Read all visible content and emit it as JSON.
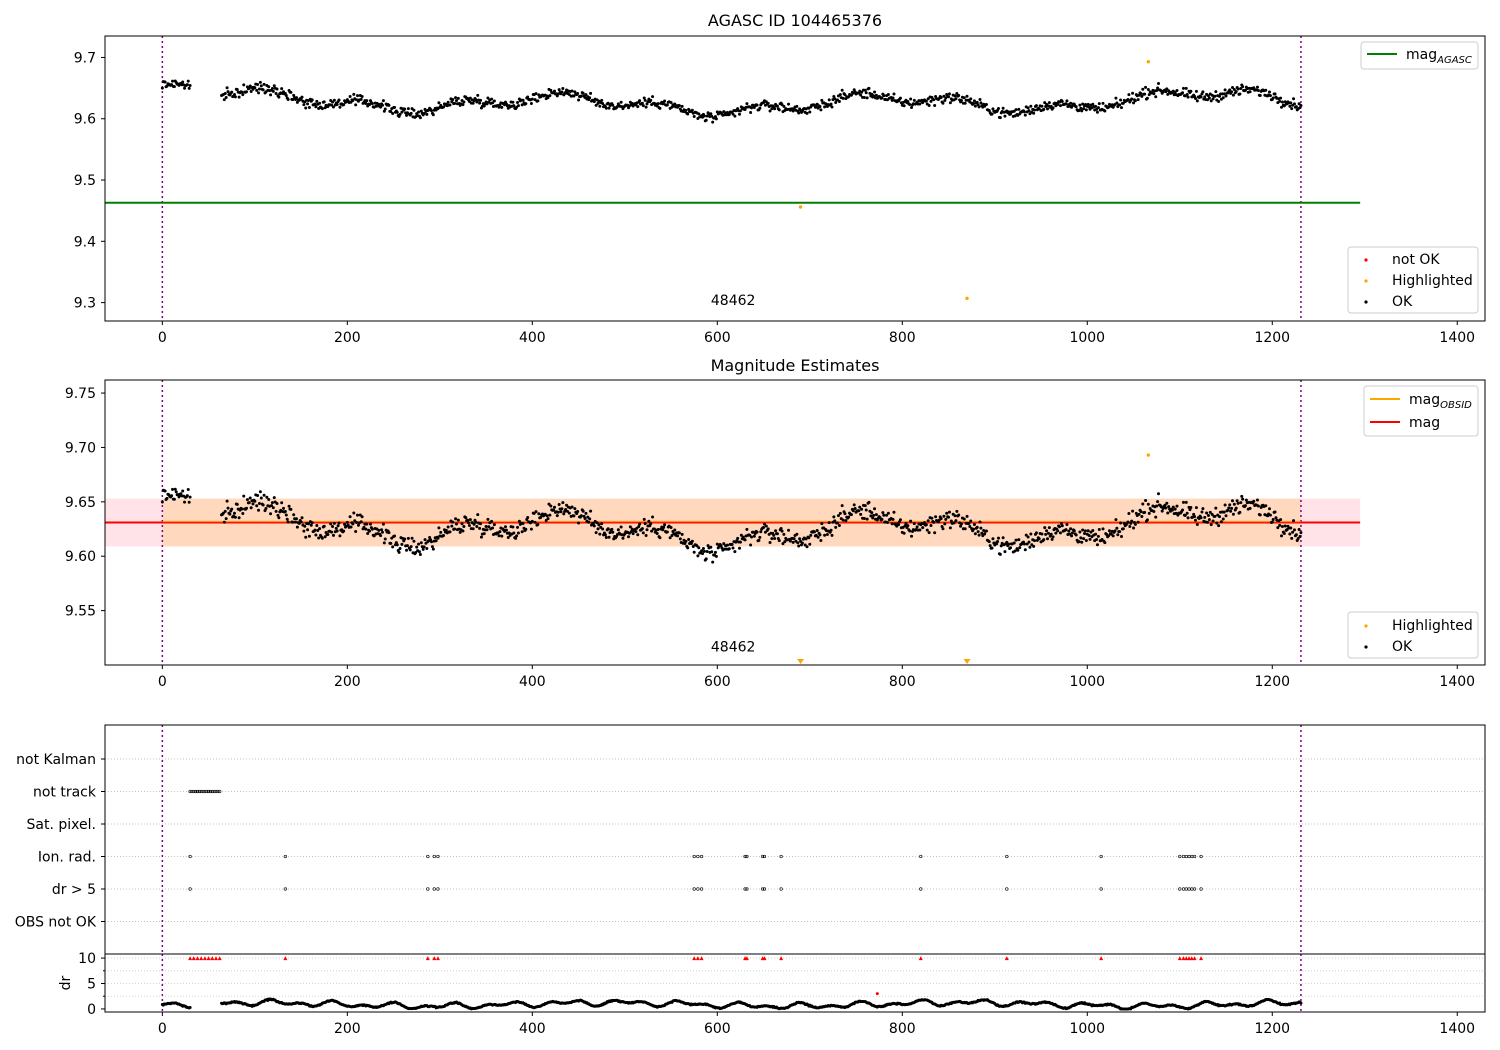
{
  "chart_data": [
    {
      "type": "scatter",
      "title": "AGASC ID 104465376",
      "xlim": [
        -62,
        1430
      ],
      "ylim": [
        9.27,
        9.735
      ],
      "xticks": [
        0,
        200,
        400,
        600,
        800,
        1000,
        1200,
        1400
      ],
      "yticks": [
        9.3,
        9.4,
        9.5,
        9.6,
        9.7
      ],
      "obsid_label": {
        "text": "48462",
        "x": 615,
        "y": 9.283
      },
      "obs_bounds": [
        0,
        1231
      ],
      "hlines": [
        {
          "name": "mag_AGASC",
          "y": 9.463,
          "xmin": -62,
          "xmax": 1295,
          "color": "#008000"
        }
      ],
      "segments": [
        {
          "x0": 0,
          "x1": 30,
          "mean": 9.642,
          "amp": 0.018
        },
        {
          "x0": 64,
          "x1": 1231,
          "mean": 9.628,
          "amp": 0.018
        }
      ],
      "highlighted_points": [
        {
          "x": 690,
          "y": 9.456
        },
        {
          "x": 870,
          "y": 9.307
        },
        {
          "x": 1066,
          "y": 9.693
        }
      ],
      "legend_upper": [
        {
          "label": "mag",
          "sub": "AGASC",
          "color": "#008000",
          "kind": "line"
        }
      ],
      "legend_lower": [
        {
          "label": "not OK",
          "color": "#ff0000",
          "kind": "dot"
        },
        {
          "label": "Highlighted",
          "color": "#ffa500",
          "kind": "dot"
        },
        {
          "label": "OK",
          "color": "#000000",
          "kind": "dot"
        }
      ]
    },
    {
      "type": "scatter",
      "title": "Magnitude Estimates",
      "xlim": [
        -62,
        1430
      ],
      "ylim": [
        9.5,
        9.762
      ],
      "xticks": [
        0,
        200,
        400,
        600,
        800,
        1000,
        1200,
        1400
      ],
      "yticks": [
        9.55,
        9.6,
        9.65,
        9.7,
        9.75
      ],
      "obsid_label": {
        "text": "48462",
        "x": 615,
        "y": 9.505
      },
      "obs_bounds": [
        0,
        1231
      ],
      "band": {
        "low": 9.609,
        "high": 9.653,
        "xmin": -62,
        "xmax": 1295,
        "obs_low": 9.609,
        "obs_high": 9.653
      },
      "mag_line": {
        "y": 9.631,
        "color": "#ff0000"
      },
      "mag_obsid_line": {
        "y": 9.631,
        "color": "#ffa500"
      },
      "segments": [
        {
          "x0": 0,
          "x1": 30,
          "mean": 9.642,
          "amp": 0.018
        },
        {
          "x0": 64,
          "x1": 1231,
          "mean": 9.628,
          "amp": 0.018
        }
      ],
      "highlighted_points": [
        {
          "x": 1066,
          "y": 9.693
        }
      ],
      "offscale_markers": [
        {
          "x": 690
        },
        {
          "x": 870
        }
      ],
      "legend_upper": [
        {
          "label": "mag",
          "sub": "OBSID",
          "color": "#ffa500",
          "kind": "line"
        },
        {
          "label": "mag",
          "sub": "",
          "color": "#ff0000",
          "kind": "line"
        }
      ],
      "legend_lower": [
        {
          "label": "Highlighted",
          "color": "#ffa500",
          "kind": "dot"
        },
        {
          "label": "OK",
          "color": "#000000",
          "kind": "dot"
        }
      ]
    },
    {
      "type": "scatter",
      "xlim": [
        -62,
        1430
      ],
      "xticks": [
        0,
        200,
        400,
        600,
        800,
        1000,
        1200,
        1400
      ],
      "obs_bounds": [
        0,
        1231
      ],
      "flag_rows": [
        "not Kalman",
        "not track",
        "Sat. pixel.",
        "Ion. rad.",
        "dr > 5",
        "OBS not OK"
      ],
      "not_track_range": [
        30,
        62
      ],
      "ion_rad_x": [
        30,
        133,
        287,
        294,
        298,
        575,
        579,
        583,
        630,
        632,
        649,
        651,
        669,
        820,
        913,
        1015,
        1100,
        1104,
        1107,
        1110,
        1113,
        1116,
        1123
      ],
      "dr_x": [
        30,
        133,
        287,
        294,
        298,
        575,
        579,
        583,
        630,
        632,
        649,
        651,
        669,
        820,
        913,
        1015,
        1100,
        1104,
        1107,
        1110,
        1113,
        1116,
        1123
      ],
      "dr_ylabel": "dr",
      "dr_ylim": [
        -0.6,
        10.8
      ],
      "dr_yticks": [
        0,
        5,
        10
      ],
      "dr_minor_ticks": [
        2.5,
        7.5
      ],
      "dr_cap": 10,
      "dr_high_x": [
        30,
        34,
        38,
        42,
        46,
        50,
        54,
        58,
        62,
        133,
        287,
        294,
        298,
        575,
        579,
        583,
        630,
        632,
        649,
        651,
        669,
        820,
        913,
        1015,
        1100,
        1104,
        1107,
        1110,
        1113,
        1116,
        1123
      ],
      "dr_outlier": {
        "x": 773,
        "y": 3.0
      },
      "dr_segments": [
        {
          "x0": 0,
          "x1": 30,
          "base": 0.8
        },
        {
          "x0": 64,
          "x1": 1231,
          "base": 0.9
        }
      ]
    }
  ]
}
